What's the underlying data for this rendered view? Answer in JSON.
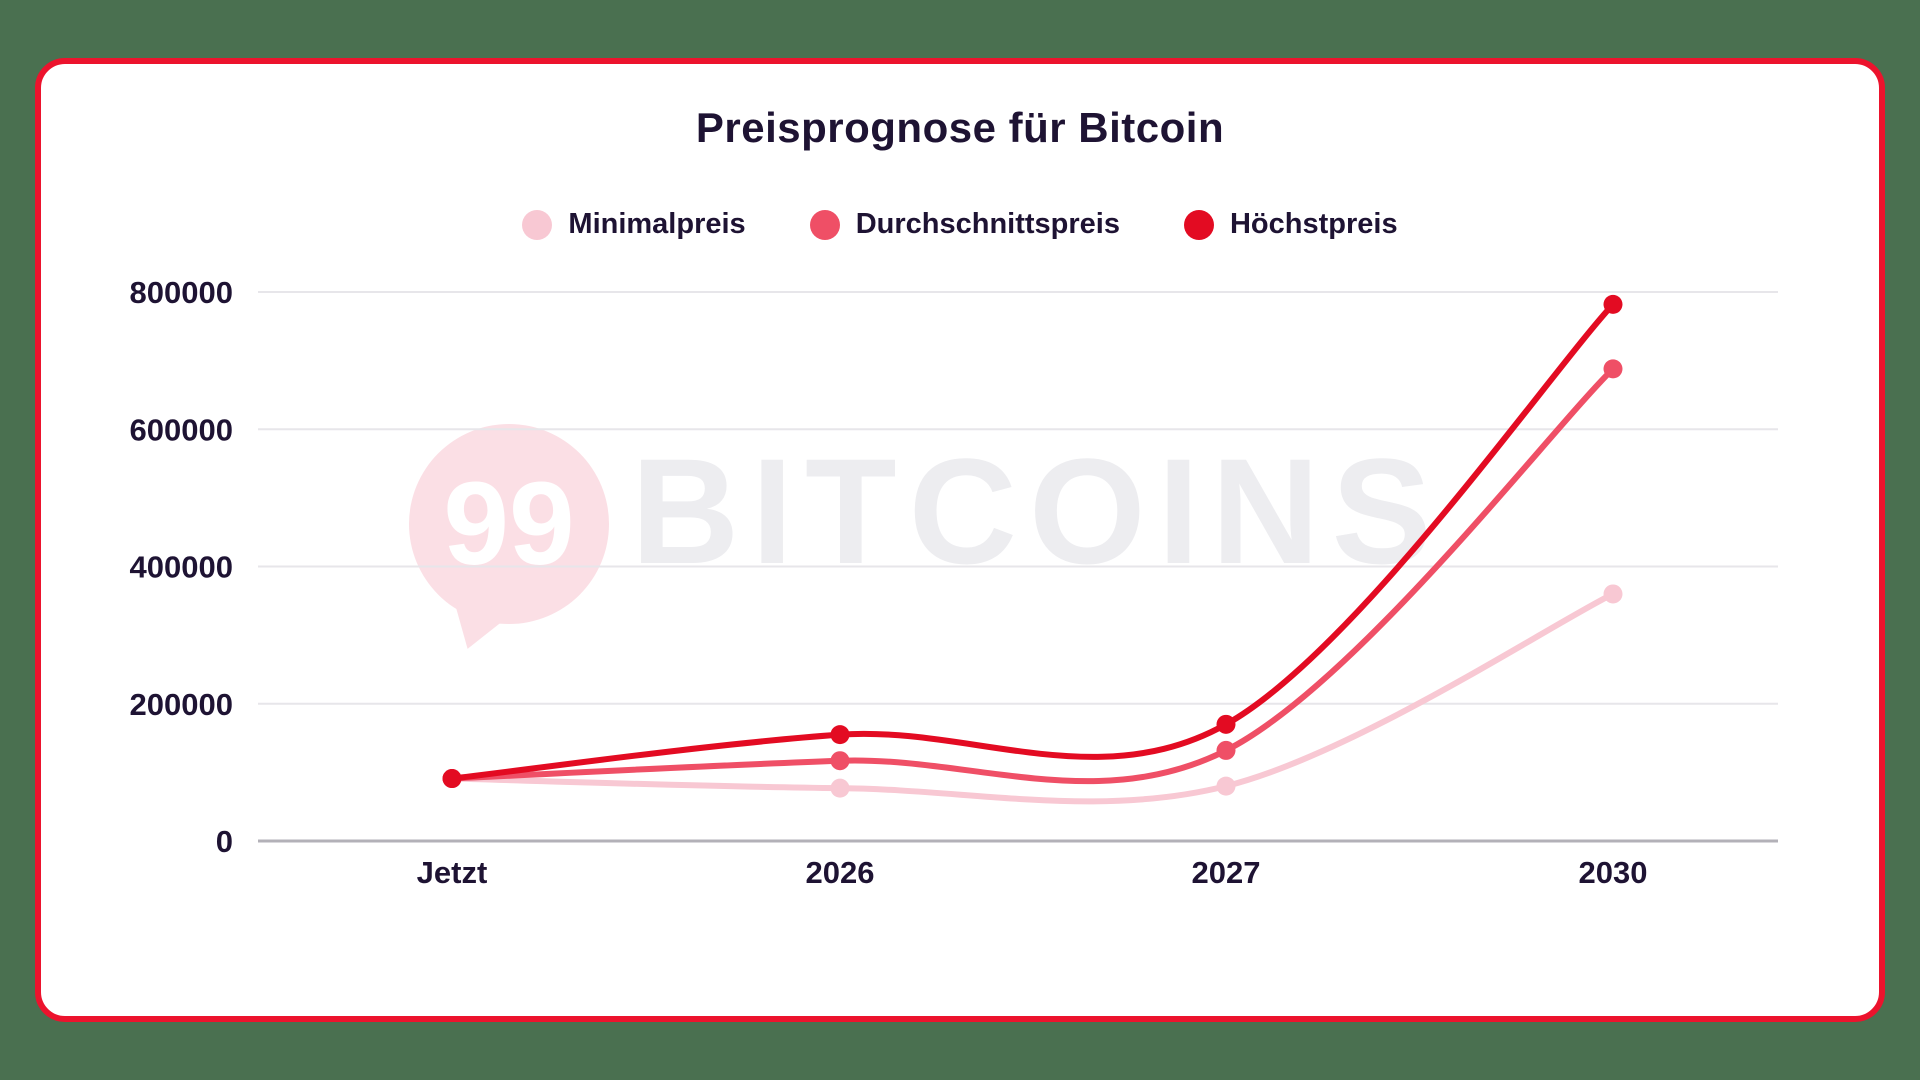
{
  "page": {
    "background": "#4a7050"
  },
  "card": {
    "background": "#ffffff",
    "border_color": "#ec132d"
  },
  "text_color": "#1e1333",
  "grid_color": "#e7e6ea",
  "axis_line_color": "#b3b1b8",
  "chart_data": {
    "type": "line",
    "title": "Preisprognose für Bitcoin",
    "categories": [
      "Jetzt",
      "2026",
      "2027",
      "2030"
    ],
    "series": [
      {
        "name": "Minimalpreis",
        "color": "#f8c8d3",
        "values": [
          91000,
          77000,
          80000,
          360000
        ]
      },
      {
        "name": "Durchschnittspreis",
        "color": "#ef4f66",
        "values": [
          91000,
          117000,
          132000,
          688000
        ]
      },
      {
        "name": "Höchstpreis",
        "color": "#e30b22",
        "values": [
          91000,
          155000,
          170000,
          782000
        ]
      }
    ],
    "ylim": [
      0,
      800000
    ],
    "yticks": [
      0,
      200000,
      400000,
      600000,
      800000
    ],
    "xlabel": "",
    "ylabel": "",
    "grid": true,
    "legend_position": "top",
    "smoothing": "catmull-rom"
  },
  "watermark": {
    "logo_number": "99",
    "text": "BITCOINS",
    "pin_color": "#fbdfe5",
    "number_color": "#ffffff",
    "text_color": "#ededf0"
  }
}
